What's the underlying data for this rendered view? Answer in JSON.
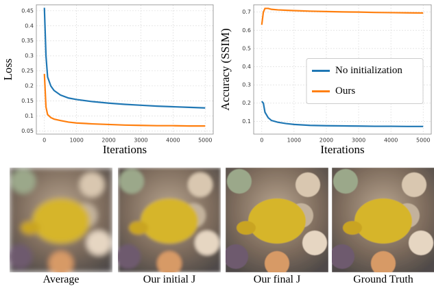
{
  "chart_data": [
    {
      "type": "line",
      "ylabel": "Loss",
      "xlabel": "Iterations",
      "x": [
        0,
        50,
        100,
        200,
        300,
        500,
        750,
        1000,
        1500,
        2000,
        2500,
        3000,
        3500,
        4000,
        4500,
        5000
      ],
      "series": [
        {
          "color": "#1f77b4",
          "values": [
            0.46,
            0.3,
            0.23,
            0.2,
            0.185,
            0.17,
            0.16,
            0.155,
            0.148,
            0.143,
            0.139,
            0.136,
            0.133,
            0.131,
            0.129,
            0.127
          ]
        },
        {
          "color": "#ff7f0e",
          "values": [
            0.24,
            0.13,
            0.105,
            0.095,
            0.09,
            0.085,
            0.08,
            0.077,
            0.074,
            0.072,
            0.07,
            0.069,
            0.068,
            0.068,
            0.067,
            0.067
          ]
        }
      ],
      "xlim": [
        -250,
        5250
      ],
      "xticks": [
        0,
        1000,
        2000,
        3000,
        4000,
        5000
      ],
      "ylim": [
        0.04,
        0.47
      ],
      "yticks": [
        0.05,
        0.1,
        0.15,
        0.2,
        0.25,
        0.3,
        0.35,
        0.4,
        0.45
      ],
      "grid": true
    },
    {
      "type": "line",
      "ylabel": "Accuracy (SSIM)",
      "xlabel": "Iterations",
      "x": [
        0,
        50,
        100,
        200,
        300,
        500,
        750,
        1000,
        1500,
        2000,
        2500,
        3000,
        3500,
        4000,
        4500,
        5000
      ],
      "series": [
        {
          "name": "No initialization",
          "color": "#1f77b4",
          "values": [
            0.21,
            0.2,
            0.15,
            0.12,
            0.105,
            0.095,
            0.088,
            0.083,
            0.078,
            0.076,
            0.075,
            0.074,
            0.073,
            0.073,
            0.072,
            0.072
          ]
        },
        {
          "name": "Ours",
          "color": "#ff7f0e",
          "values": [
            0.63,
            0.7,
            0.72,
            0.72,
            0.715,
            0.712,
            0.71,
            0.708,
            0.705,
            0.703,
            0.701,
            0.7,
            0.698,
            0.697,
            0.696,
            0.695
          ]
        }
      ],
      "xlim": [
        -250,
        5250
      ],
      "xticks": [
        0,
        1000,
        2000,
        3000,
        4000,
        5000
      ],
      "ylim": [
        0.03,
        0.74
      ],
      "yticks": [
        0.1,
        0.2,
        0.3,
        0.4,
        0.5,
        0.6,
        0.7
      ],
      "grid": true,
      "legend": "center right"
    }
  ],
  "images": {
    "captions": [
      "Average",
      "Our initial J",
      "Our final J",
      "Ground Truth"
    ]
  }
}
